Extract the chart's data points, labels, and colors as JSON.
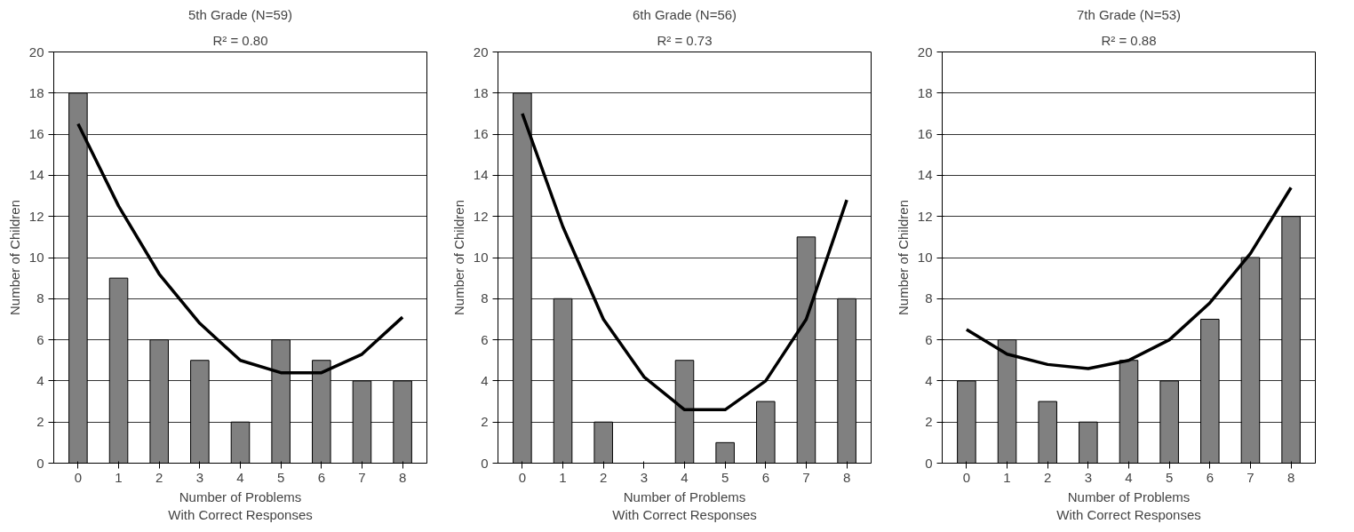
{
  "chart_data": [
    {
      "type": "bar",
      "title": "5th Grade (N=59)",
      "subtitle": "R² = 0.80",
      "xlabel": "Number of Problems\nWith Correct Responses",
      "ylabel": "Number of Children",
      "categories": [
        "0",
        "1",
        "2",
        "3",
        "4",
        "5",
        "6",
        "7",
        "8"
      ],
      "ylim": [
        0,
        20
      ],
      "yticks": [
        0,
        2,
        4,
        6,
        8,
        10,
        12,
        14,
        16,
        18,
        20
      ],
      "grid": "y",
      "series": [
        {
          "color": "#808080",
          "values": [
            18,
            9,
            6,
            5,
            2,
            6,
            5,
            4,
            4
          ]
        },
        {
          "type": "line",
          "color": "#000000",
          "values": [
            16.5,
            12.5,
            9.2,
            6.8,
            5.0,
            4.4,
            4.4,
            5.3,
            7.1
          ]
        }
      ]
    },
    {
      "type": "bar",
      "title": "6th Grade (N=56)",
      "subtitle": "R² = 0.73",
      "xlabel": "Number of Problems\nWith Correct Responses",
      "ylabel": "Number of Children",
      "categories": [
        "0",
        "1",
        "2",
        "3",
        "4",
        "5",
        "6",
        "7",
        "8"
      ],
      "ylim": [
        0,
        20
      ],
      "yticks": [
        0,
        2,
        4,
        6,
        8,
        10,
        12,
        14,
        16,
        18,
        20
      ],
      "grid": "y",
      "series": [
        {
          "color": "#808080",
          "values": [
            18,
            8,
            2,
            0,
            5,
            1,
            3,
            11,
            8
          ]
        },
        {
          "type": "line",
          "color": "#000000",
          "values": [
            17,
            11.5,
            7,
            4.2,
            2.6,
            2.6,
            4,
            7,
            12.8
          ]
        }
      ]
    },
    {
      "type": "bar",
      "title": "7th Grade (N=53)",
      "subtitle": "R² = 0.88",
      "xlabel": "Number of Problems\nWith Correct Responses",
      "ylabel": "Number of Children",
      "categories": [
        "0",
        "1",
        "2",
        "3",
        "4",
        "5",
        "6",
        "7",
        "8"
      ],
      "ylim": [
        0,
        20
      ],
      "yticks": [
        0,
        2,
        4,
        6,
        8,
        10,
        12,
        14,
        16,
        18,
        20
      ],
      "grid": "y",
      "series": [
        {
          "color": "#808080",
          "values": [
            4,
            6,
            3,
            2,
            5,
            4,
            7,
            10,
            12
          ]
        },
        {
          "type": "line",
          "color": "#000000",
          "values": [
            6.5,
            5.3,
            4.8,
            4.6,
            5,
            6,
            7.8,
            10.2,
            13.4
          ]
        }
      ]
    }
  ]
}
